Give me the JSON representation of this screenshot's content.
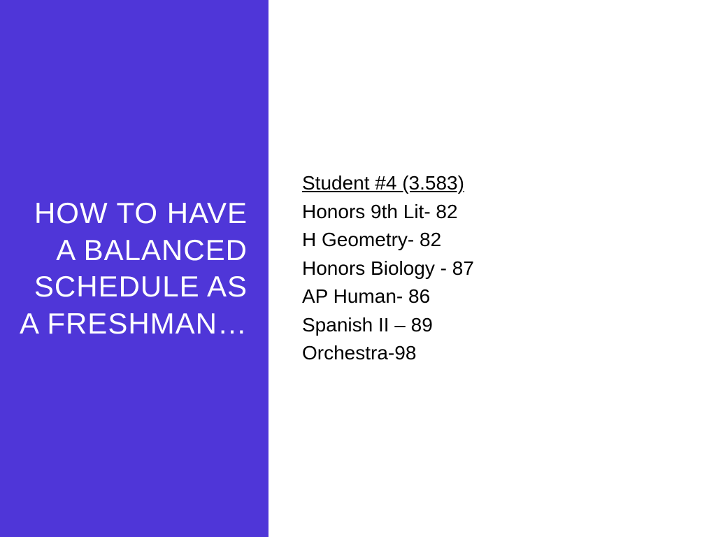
{
  "layout": {
    "left_bg": "#4f36d8",
    "right_bg": "#ffffff",
    "title_color": "#ffffff",
    "content_color": "#000000",
    "title_fontsize": 42,
    "content_fontsize": 28
  },
  "title": "HOW TO HAVE A BALANCED SCHEDULE AS A FRESHMAN…",
  "student": {
    "header": "Student #4 (3.583)",
    "courses": [
      "Honors 9th Lit- 82",
      "H Geometry- 82",
      "Honors Biology - 87",
      "AP Human- 86",
      "Spanish II – 89",
      "Orchestra-98"
    ]
  }
}
